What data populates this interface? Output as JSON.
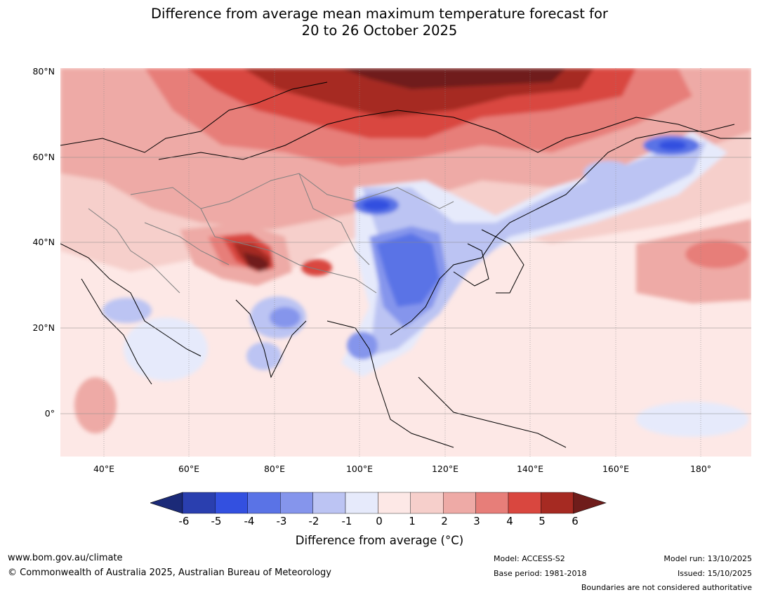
{
  "title": {
    "line1": "Difference from average mean maximum temperature forecast for",
    "line2": "20 to 26 October 2025"
  },
  "map": {
    "lat_labels": [
      "80°N",
      "60°N",
      "40°N",
      "20°N",
      "0°"
    ],
    "lon_labels": [
      "40°E",
      "60°E",
      "80°E",
      "100°E",
      "120°E",
      "140°E",
      "160°E",
      "180°"
    ],
    "extent": {
      "lon_min": 30,
      "lon_max": 192,
      "lat_min": -10,
      "lat_max": 80
    }
  },
  "colorbar": {
    "ticks": [
      "-6",
      "-5",
      "-4",
      "-3",
      "-2",
      "-1",
      "0",
      "1",
      "2",
      "3",
      "4",
      "5",
      "6"
    ],
    "colors": [
      "#1b2a78",
      "#2a3faf",
      "#3350e0",
      "#5a73e6",
      "#8595ec",
      "#bcc4f3",
      "#e6eafb",
      "#fde8e6",
      "#f6cfcb",
      "#eeaaa6",
      "#e77e79",
      "#d9473f",
      "#a62a22",
      "#6f1d1b"
    ],
    "label": "Difference from average (°C)"
  },
  "footer": {
    "website": "www.bom.gov.au/climate",
    "copyright": "© Commonwealth of Australia 2025, Australian Bureau of Meteorology",
    "model": "Model: ACCESS-S2",
    "base_period": "Base period: 1981-2018",
    "model_run": "Model run: 13/10/2025",
    "issued": "Issued: 15/10/2025",
    "disclaimer": "Boundaries are not considered authoritative"
  }
}
